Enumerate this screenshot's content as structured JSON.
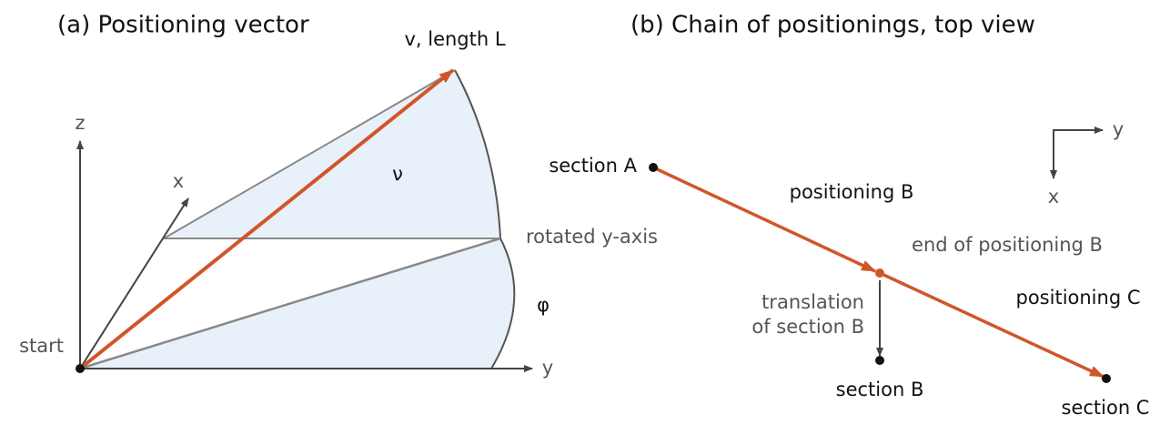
{
  "panel_a": {
    "title": "(a) Positioning vector",
    "axis_z": "z",
    "axis_x": "x",
    "axis_y": "y",
    "start": "start",
    "vector": "v, length L",
    "angle_nu": "ν",
    "rotated_axis": "rotated y-axis",
    "angle_phi": "φ"
  },
  "panel_b": {
    "title": "(b) Chain of positionings, top view",
    "section_a": "section A",
    "positioning_b": "positioning B",
    "end_b": "end of positioning B",
    "translation": [
      "translation",
      "of section B"
    ],
    "section_b": "section B",
    "positioning_c": "positioning C",
    "section_c": "section C",
    "compass_y": "y",
    "compass_x": "x"
  }
}
